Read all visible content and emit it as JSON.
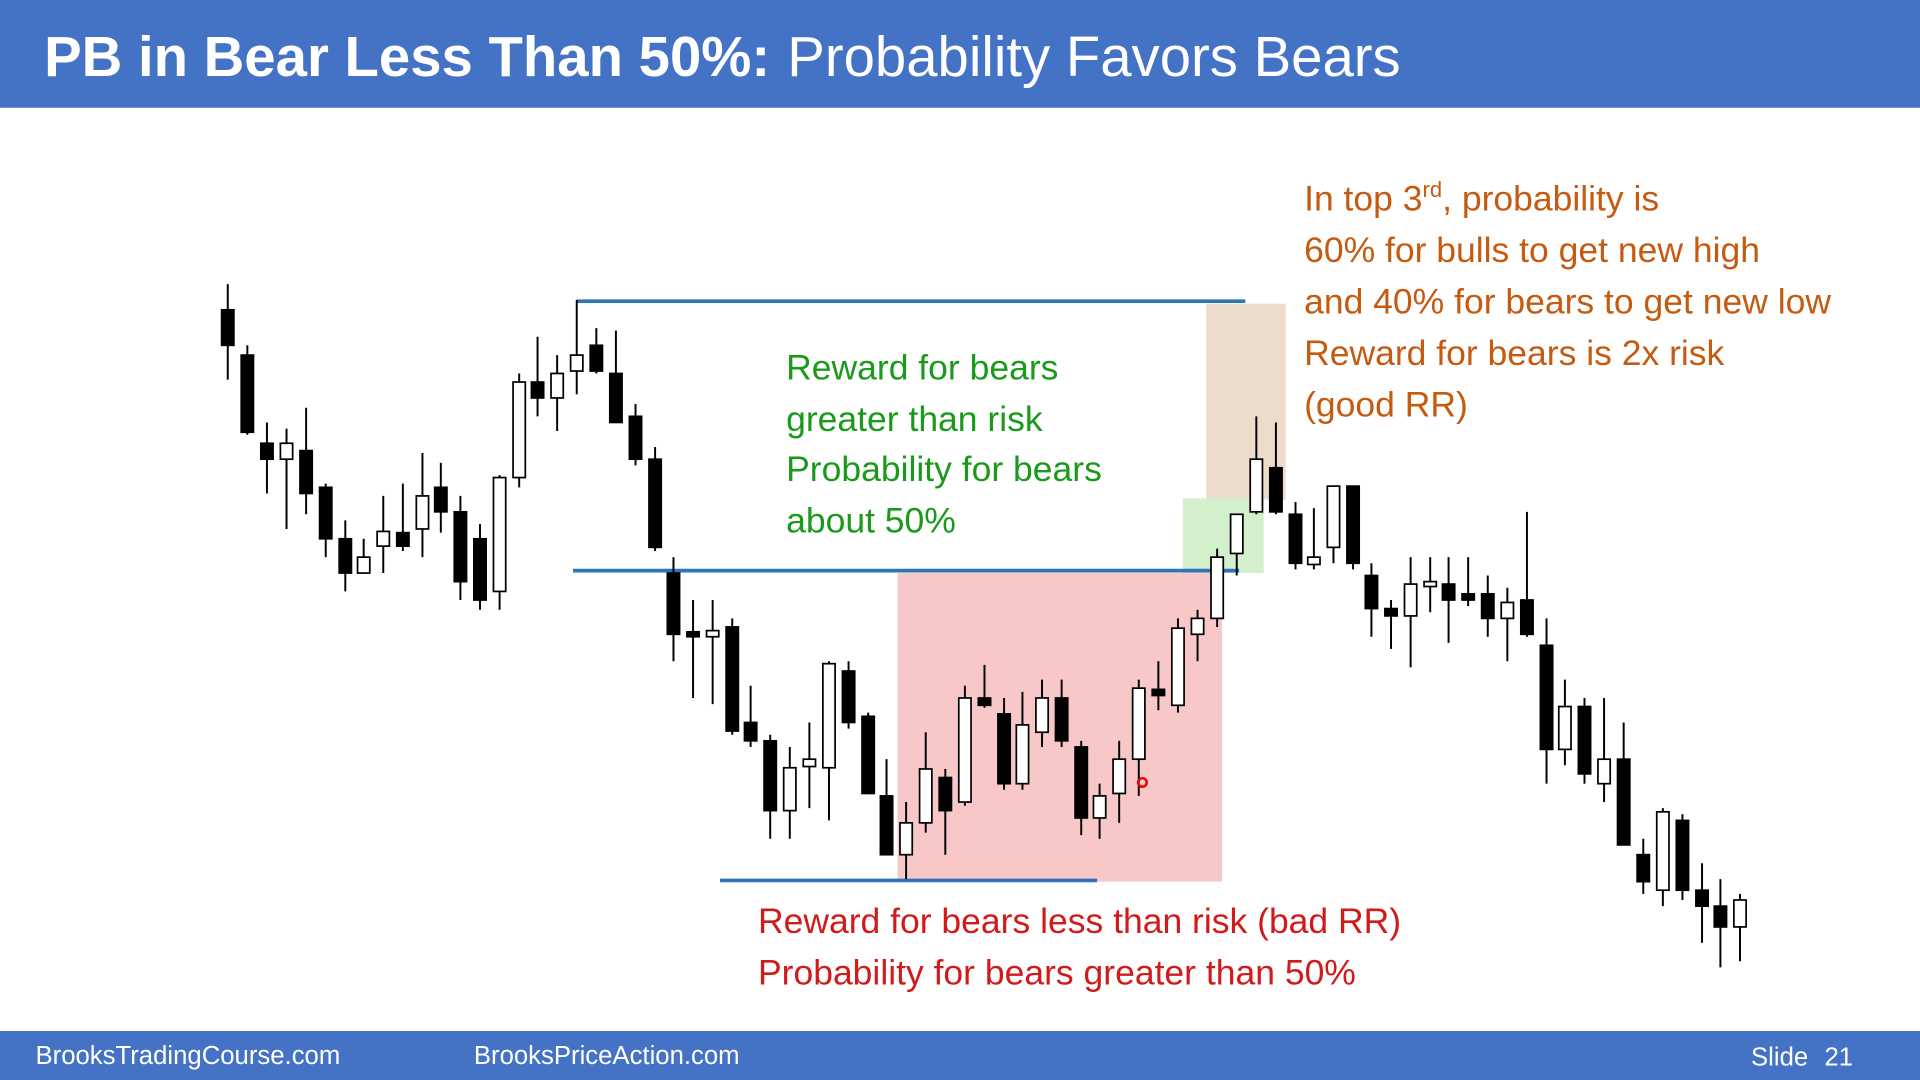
{
  "header": {
    "title_bold": "PB in Bear Less Than 50%:",
    "title_rest": "Probability Favors Bears"
  },
  "annotations": {
    "green": [
      "Reward for bears",
      "greater than risk",
      "Probability for bears",
      "about 50%"
    ],
    "orange": {
      "first_line": {
        "before": "In top 3",
        "superscript": "rd",
        "after": ", probability is"
      },
      "lines": [
        "60% for bulls to get new high",
        "and 40% for bears to get new low",
        "Reward for bears is 2x risk",
        "(good RR)"
      ]
    },
    "red": [
      "Reward for bears less than risk (bad RR)",
      "Probability for bears greater than 50%"
    ]
  },
  "footer": {
    "left": "BrooksTradingCourse.com",
    "middle": "BrooksPriceAction.com",
    "slide_label": "Slide",
    "slide_number": "21"
  }
}
